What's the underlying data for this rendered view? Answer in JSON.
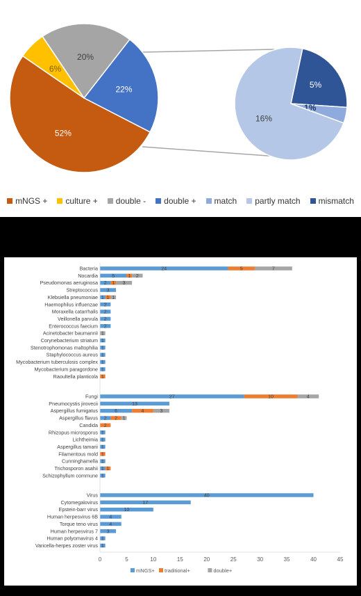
{
  "chart_data": [
    {
      "type": "pie",
      "subtype": "pie-of-pie",
      "main_slices": [
        {
          "label": "mNGS +",
          "value": 52,
          "text": "52%",
          "color": "#C55A11"
        },
        {
          "label": "culture +",
          "value": 6,
          "text": "6%",
          "color": "#FFC000"
        },
        {
          "label": "double -",
          "value": 20,
          "text": "20%",
          "color": "#A5A5A5"
        },
        {
          "label": "double +",
          "value": 22,
          "text": "22%",
          "color": "#4472C4"
        }
      ],
      "secondary_slices": [
        {
          "label": "partly match",
          "value": 16,
          "text": "16%",
          "color": "#B4C7E7"
        },
        {
          "label": "mismatch",
          "value": 5,
          "text": "5%",
          "color": "#2F5597"
        },
        {
          "label": "match",
          "value": 1,
          "text": "1%",
          "color": "#8FAADC"
        }
      ],
      "legend": [
        {
          "label": "mNGS +",
          "color": "#C55A11"
        },
        {
          "label": "culture +",
          "color": "#FFC000"
        },
        {
          "label": "double -",
          "color": "#A5A5A5"
        },
        {
          "label": "double +",
          "color": "#4472C4"
        },
        {
          "label": "match",
          "color": "#8FAADC"
        },
        {
          "label": "partly match",
          "color": "#B4C7E7"
        },
        {
          "label": "mismatch",
          "color": "#2F5597"
        }
      ],
      "legend_position": "bottom"
    },
    {
      "type": "bar",
      "orientation": "horizontal",
      "stacked": true,
      "series": [
        {
          "name": "mNGS+",
          "color": "#5B9BD5"
        },
        {
          "name": "traditional+",
          "color": "#ED7D31"
        },
        {
          "name": "double+",
          "color": "#A5A5A5"
        }
      ],
      "groups": [
        {
          "name": "Bacteria",
          "rows": [
            {
              "label": "Bacteria",
              "values": [
                24,
                5,
                7
              ],
              "labels": [
                "24",
                "5",
                "7"
              ]
            },
            {
              "label": "Nocardia",
              "values": [
                5,
                1,
                2
              ],
              "labels": [
                "5",
                "1",
                "2"
              ]
            },
            {
              "label": "Pseudomonas aeruginosa",
              "values": [
                2,
                1,
                3
              ],
              "labels": [
                "2",
                "1",
                "3"
              ]
            },
            {
              "label": "Streptococcus",
              "values": [
                3,
                0,
                0
              ],
              "labels": [
                "3",
                "",
                ""
              ]
            },
            {
              "label": "Klebsiella pneumoniae",
              "values": [
                1,
                1,
                1
              ],
              "labels": [
                "1",
                "1",
                "1"
              ]
            },
            {
              "label": "Haemophilus influenzae",
              "values": [
                2,
                0,
                0
              ],
              "labels": [
                "2",
                "",
                ""
              ]
            },
            {
              "label": "Moraxella catarrhalis",
              "values": [
                2,
                0,
                0
              ],
              "labels": [
                "2",
                "",
                ""
              ]
            },
            {
              "label": "Veillonella parvula",
              "values": [
                2,
                0,
                0
              ],
              "labels": [
                "2",
                "",
                ""
              ]
            },
            {
              "label": "Enterococcus faecium",
              "values": [
                2,
                0,
                0
              ],
              "labels": [
                "2",
                "",
                ""
              ]
            },
            {
              "label": "Acinetobacter baumannii",
              "values": [
                0,
                0,
                1
              ],
              "labels": [
                "",
                "",
                "1"
              ]
            },
            {
              "label": "Corynebacterium striatum",
              "values": [
                1,
                0,
                0
              ],
              "labels": [
                "1",
                "",
                ""
              ]
            },
            {
              "label": "Stenotrophomonas maltophilia",
              "values": [
                1,
                0,
                0
              ],
              "labels": [
                "1",
                "",
                ""
              ]
            },
            {
              "label": "Staphylococcus aureus",
              "values": [
                1,
                0,
                0
              ],
              "labels": [
                "1",
                "",
                ""
              ]
            },
            {
              "label": "Mycobacterium tuberculosis complex",
              "values": [
                1,
                0,
                0
              ],
              "labels": [
                "1",
                "",
                ""
              ]
            },
            {
              "label": "Mycobacterium paragordone",
              "values": [
                1,
                0,
                0
              ],
              "labels": [
                "1",
                "",
                ""
              ]
            },
            {
              "label": "Raoultella planticola",
              "values": [
                0,
                1,
                0
              ],
              "labels": [
                "",
                "1",
                ""
              ]
            }
          ]
        },
        {
          "name": "Fungi",
          "rows": [
            {
              "label": "Fungi",
              "values": [
                27,
                10,
                4
              ],
              "labels": [
                "27",
                "10",
                "4"
              ]
            },
            {
              "label": "Pneumocystis jirovecii",
              "values": [
                13,
                0,
                0
              ],
              "labels": [
                "13",
                "",
                ""
              ]
            },
            {
              "label": "Aspergillus fumigatus",
              "values": [
                6,
                4,
                3
              ],
              "labels": [
                "6",
                "4",
                "3"
              ]
            },
            {
              "label": "Aspergillus flavus",
              "values": [
                2,
                2,
                1
              ],
              "labels": [
                "2",
                "2",
                "1"
              ]
            },
            {
              "label": "Candida",
              "values": [
                0,
                2,
                0
              ],
              "labels": [
                "",
                "2",
                ""
              ]
            },
            {
              "label": "Rhizopus microsporus",
              "values": [
                1,
                0,
                0
              ],
              "labels": [
                "1",
                "",
                ""
              ]
            },
            {
              "label": "Lichtheimia",
              "values": [
                1,
                0,
                0
              ],
              "labels": [
                "1",
                "",
                ""
              ]
            },
            {
              "label": "Aspergillus tamarii",
              "values": [
                1,
                0,
                0
              ],
              "labels": [
                "1",
                "",
                ""
              ]
            },
            {
              "label": "Filamentous mold",
              "values": [
                0,
                1,
                0
              ],
              "labels": [
                "",
                "1",
                ""
              ]
            },
            {
              "label": "Cunninghamella",
              "values": [
                1,
                0,
                0
              ],
              "labels": [
                "1",
                "",
                ""
              ]
            },
            {
              "label": "Trichosporon asahii",
              "values": [
                1,
                1,
                0
              ],
              "labels": [
                "1",
                "1",
                ""
              ]
            },
            {
              "label": "Schizophyllum commune",
              "values": [
                1,
                0,
                0
              ],
              "labels": [
                "1",
                "",
                ""
              ]
            }
          ]
        },
        {
          "name": "Virus",
          "rows": [
            {
              "label": "Virus",
              "values": [
                40,
                0,
                0
              ],
              "labels": [
                "40",
                "",
                ""
              ]
            },
            {
              "label": "Cytomegalovirus",
              "values": [
                17,
                0,
                0
              ],
              "labels": [
                "17",
                "",
                ""
              ]
            },
            {
              "label": "Epstein-barr virus",
              "values": [
                10,
                0,
                0
              ],
              "labels": [
                "10",
                "",
                ""
              ]
            },
            {
              "label": "Human herpesvirus 6B",
              "values": [
                4,
                0,
                0
              ],
              "labels": [
                "4",
                "",
                ""
              ]
            },
            {
              "label": "Torque teno virus",
              "values": [
                4,
                0,
                0
              ],
              "labels": [
                "4",
                "",
                ""
              ]
            },
            {
              "label": "Human herpesvirus 7",
              "values": [
                3,
                0,
                0
              ],
              "labels": [
                "3",
                "",
                ""
              ]
            },
            {
              "label": "Human polyomavirus 4",
              "values": [
                1,
                0,
                0
              ],
              "labels": [
                "1",
                "",
                ""
              ]
            },
            {
              "label": "Varicella-herpes zoster virus",
              "values": [
                1,
                0,
                0
              ],
              "labels": [
                "1",
                "",
                ""
              ]
            }
          ]
        }
      ],
      "xlim": [
        0,
        45
      ],
      "xticks": [
        0,
        5,
        10,
        15,
        20,
        25,
        30,
        35,
        40,
        45
      ],
      "legend_position": "bottom"
    }
  ]
}
